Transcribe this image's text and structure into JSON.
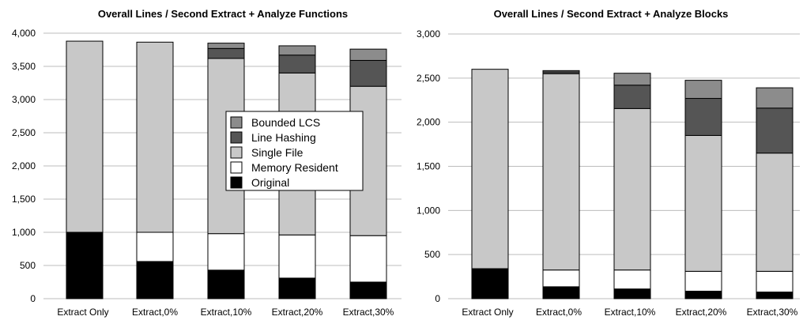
{
  "chart_data": [
    {
      "type": "bar",
      "stacked": true,
      "title": "Overall Lines / Second Extract + Analyze Functions",
      "categories": [
        "Extract Only",
        "Extract,0%",
        "Extract,10%",
        "Extract,20%",
        "Extract,30%"
      ],
      "ylim": [
        0,
        4000
      ],
      "yticks": [
        0,
        500,
        1000,
        1500,
        2000,
        2500,
        3000,
        3500,
        4000
      ],
      "ytick_labels": [
        "0",
        "500",
        "1,000",
        "1,500",
        "2,000",
        "2,500",
        "3,000",
        "3,500",
        "4,000"
      ],
      "grid": true,
      "legend_position": "center",
      "series": [
        {
          "name": "Original",
          "color": "#000000",
          "values": [
            1000,
            560,
            430,
            310,
            250
          ]
        },
        {
          "name": "Memory Resident",
          "color": "#ffffff",
          "values": [
            0,
            440,
            550,
            650,
            700
          ]
        },
        {
          "name": "Single File",
          "color": "#c8c8c8",
          "values": [
            2880,
            2865,
            2640,
            2440,
            2250
          ]
        },
        {
          "name": "Line Hashing",
          "color": "#555555",
          "values": [
            0,
            0,
            150,
            270,
            390
          ]
        },
        {
          "name": "Bounded LCS",
          "color": "#8c8c8c",
          "values": [
            0,
            0,
            80,
            140,
            170
          ]
        }
      ]
    },
    {
      "type": "bar",
      "stacked": true,
      "title": "Overall Lines / Second Extract + Analyze Blocks",
      "categories": [
        "Extract Only",
        "Extract,0%",
        "Extract,10%",
        "Extract,20%",
        "Extract,30%"
      ],
      "ylim": [
        0,
        3000
      ],
      "yticks": [
        0,
        500,
        1000,
        1500,
        2000,
        2500,
        3000
      ],
      "ytick_labels": [
        "0",
        "500",
        "1,000",
        "1,500",
        "2,000",
        "2,500",
        "3,000"
      ],
      "grid": true,
      "series": [
        {
          "name": "Original",
          "color": "#000000",
          "values": [
            340,
            135,
            110,
            85,
            75
          ]
        },
        {
          "name": "Memory Resident",
          "color": "#ffffff",
          "values": [
            0,
            190,
            215,
            225,
            235
          ]
        },
        {
          "name": "Single File",
          "color": "#c8c8c8",
          "values": [
            2260,
            2225,
            1830,
            1540,
            1340
          ]
        },
        {
          "name": "Line Hashing",
          "color": "#555555",
          "values": [
            0,
            20,
            265,
            420,
            510
          ]
        },
        {
          "name": "Bounded LCS",
          "color": "#8c8c8c",
          "values": [
            0,
            15,
            135,
            205,
            230
          ]
        }
      ]
    }
  ],
  "legend": {
    "items": [
      {
        "label": "Bounded LCS",
        "color": "#8c8c8c"
      },
      {
        "label": "Line Hashing",
        "color": "#555555"
      },
      {
        "label": "Single File",
        "color": "#c8c8c8"
      },
      {
        "label": "Memory Resident",
        "color": "#ffffff"
      },
      {
        "label": "Original",
        "color": "#000000"
      }
    ]
  }
}
